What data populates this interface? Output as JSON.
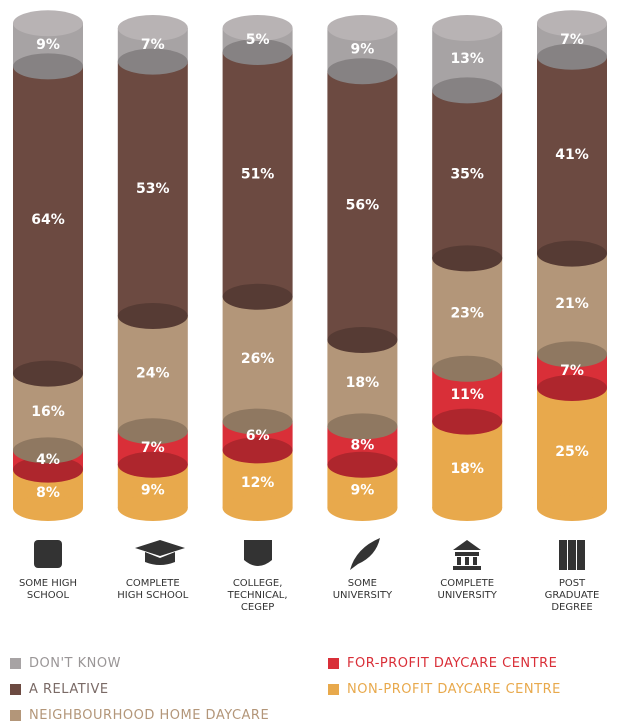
{
  "chart_data": {
    "type": "bar",
    "stacked": true,
    "categories": [
      "SOME HIGH SCHOOL",
      "COMPLETE HIGH SCHOOL",
      "COLLEGE, TECHNICAL, CEGEP",
      "SOME UNIVERSITY",
      "COMPLETE UNIVERSITY",
      "POST GRADUATE DEGREE"
    ],
    "series": [
      {
        "name": "NON-PROFIT DAYCARE CENTRE",
        "color": "#e8a94c",
        "values": [
          8,
          9,
          12,
          9,
          18,
          25
        ],
        "value_labels": [
          "8%",
          "9%",
          "12%",
          "9%",
          "18%",
          "25%"
        ]
      },
      {
        "name": "FOR-PROFIT DAYCARE CENTRE",
        "color": "#d92f38",
        "values": [
          4,
          7,
          6,
          8,
          11,
          7
        ],
        "value_labels": [
          "4%",
          "7%",
          "6%",
          "8%",
          "11%",
          "7%"
        ]
      },
      {
        "name": "NEIGHBOURHOOD HOME DAYCARE",
        "color": "#b39679",
        "values": [
          16,
          24,
          26,
          18,
          23,
          21
        ],
        "value_labels": [
          "16%",
          "24%",
          "26%",
          "18%",
          "23%",
          "21%"
        ]
      },
      {
        "name": "A RELATIVE",
        "color": "#6c4a41",
        "values": [
          64,
          53,
          51,
          56,
          35,
          41
        ],
        "value_labels": [
          "64%",
          "53%",
          "51%",
          "56%",
          "35%",
          "41%"
        ]
      },
      {
        "name": "DON'T KNOW",
        "color": "#a7a3a4",
        "values": [
          9,
          7,
          5,
          9,
          13,
          7
        ],
        "value_labels": [
          "9%",
          "7%",
          "5%",
          "9%",
          "13%",
          "7%"
        ]
      }
    ]
  }
}
